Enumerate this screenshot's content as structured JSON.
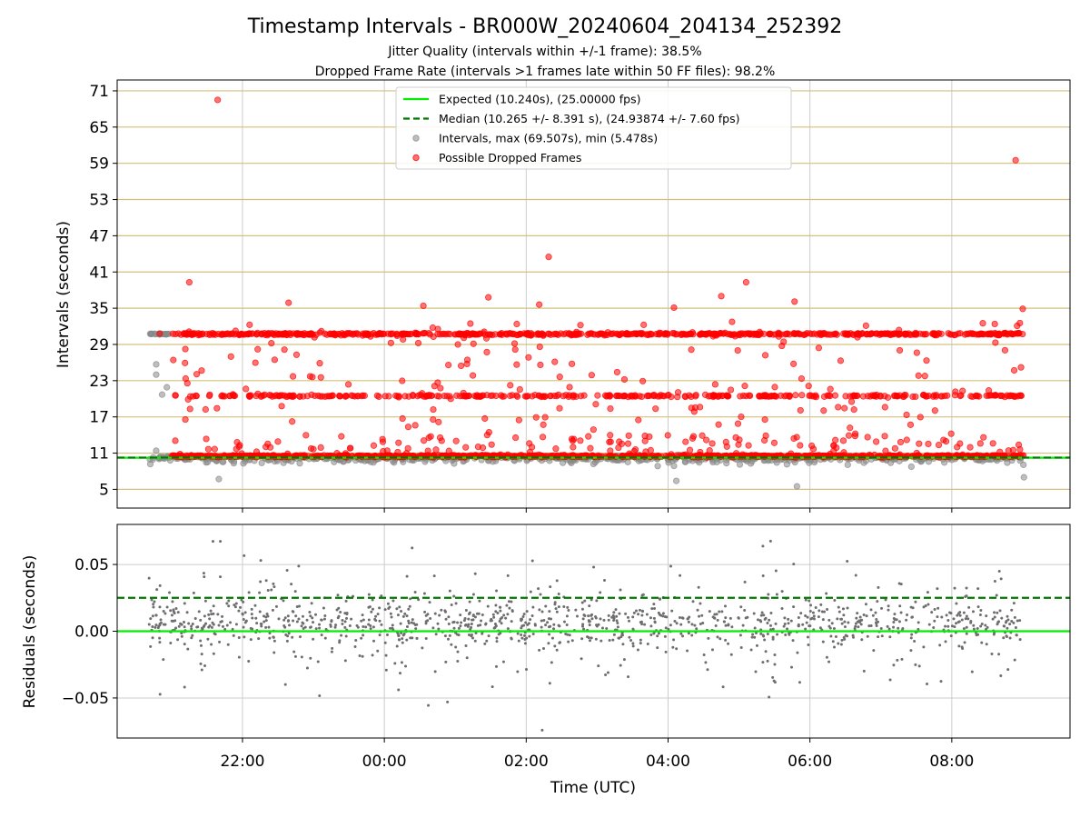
{
  "title": "Timestamp Intervals - BR000W_20240604_204134_252392",
  "subtitle_jitter": "Jitter Quality (intervals within +/-1 frame): 38.5%",
  "subtitle_dropped": "Dropped Frame Rate (intervals >1 frames late within 50 FF files): 98.2%",
  "colors": {
    "expected": "#00ee00",
    "median": "#007700",
    "intervals": "#888888",
    "dropped": "#ff0000",
    "hgrid_top": "#d4c07a",
    "grid": "#cccccc",
    "residual_points": "#6e6e6e"
  },
  "chart_data": [
    {
      "type": "scatter",
      "ylabel": "Intervals (seconds)",
      "xlabel": "",
      "x_range": [
        "20:14",
        "09:40"
      ],
      "ylim": [
        1.9,
        72.8
      ],
      "yticks": [
        5,
        11,
        17,
        23,
        29,
        35,
        41,
        47,
        53,
        59,
        65,
        71
      ],
      "grid": true,
      "legend_position": "upper center",
      "legend": [
        {
          "label": "Expected (10.240s), (25.00000 fps)",
          "style": "solid-line",
          "color": "#00ee00"
        },
        {
          "label": "Median (10.265 +/- 8.391 s), (24.93874 +/- 7.60 fps)",
          "style": "dashed-line",
          "color": "#007700"
        },
        {
          "label": "Intervals, max (69.507s), min (5.478s)",
          "style": "marker",
          "color": "#888888"
        },
        {
          "label": "Possible Dropped Frames",
          "style": "marker",
          "color": "#ff0000"
        }
      ],
      "expected_interval": 10.24,
      "median_interval": 10.265,
      "time_start": "20:41",
      "time_end": "09:01",
      "clusters": [
        {
          "name": "Intervals",
          "center": 10.24,
          "from": "20:41",
          "to": "09:01"
        },
        {
          "name": "Intervals",
          "center": 30.72,
          "from": "20:41",
          "to": "21:00"
        },
        {
          "name": "Possible Dropped Frames",
          "center": 10.5,
          "from": "21:00",
          "to": "09:01"
        },
        {
          "name": "Possible Dropped Frames",
          "center": 20.48,
          "from": "21:00",
          "to": "09:01"
        },
        {
          "name": "Possible Dropped Frames",
          "center": 30.72,
          "from": "21:00",
          "to": "09:01"
        }
      ],
      "outliers": [
        {
          "series": "Possible Dropped Frames",
          "x": "21:39",
          "y": 69.5
        },
        {
          "series": "Possible Dropped Frames",
          "x": "08:54",
          "y": 59.5
        },
        {
          "series": "Possible Dropped Frames",
          "x": "02:19",
          "y": 43.5
        },
        {
          "series": "Possible Dropped Frames",
          "x": "21:15",
          "y": 39.3
        },
        {
          "series": "Possible Dropped Frames",
          "x": "05:06",
          "y": 39.3
        },
        {
          "series": "Possible Dropped Frames",
          "x": "04:45",
          "y": 37.0
        },
        {
          "series": "Possible Dropped Frames",
          "x": "01:28",
          "y": 36.8
        },
        {
          "series": "Possible Dropped Frames",
          "x": "05:47",
          "y": 36.1
        },
        {
          "series": "Possible Dropped Frames",
          "x": "22:39",
          "y": 35.9
        },
        {
          "series": "Possible Dropped Frames",
          "x": "02:11",
          "y": 35.6
        },
        {
          "series": "Possible Dropped Frames",
          "x": "00:33",
          "y": 35.4
        },
        {
          "series": "Possible Dropped Frames",
          "x": "04:05",
          "y": 35.1
        },
        {
          "series": "Possible Dropped Frames",
          "x": "09:00",
          "y": 34.9
        },
        {
          "series": "Possible Dropped Frames",
          "x": "20:50",
          "y": 30.8
        },
        {
          "series": "Intervals",
          "x": "20:47",
          "y": 25.7
        },
        {
          "series": "Intervals",
          "x": "20:47",
          "y": 24.0
        },
        {
          "series": "Intervals",
          "x": "20:52",
          "y": 20.7
        },
        {
          "series": "Intervals",
          "x": "20:56",
          "y": 21.9
        },
        {
          "series": "Intervals",
          "x": "20:47",
          "y": 11.4
        },
        {
          "series": "Intervals",
          "x": "05:49",
          "y": 5.5
        },
        {
          "series": "Intervals",
          "x": "04:07",
          "y": 6.4
        },
        {
          "series": "Intervals",
          "x": "21:40",
          "y": 6.7
        },
        {
          "series": "Intervals",
          "x": "09:01",
          "y": 7.0
        }
      ]
    },
    {
      "type": "scatter",
      "ylabel": "Residuals (seconds)",
      "xlabel": "Time (UTC)",
      "x_range": [
        "20:14",
        "09:40"
      ],
      "ylim": [
        -0.08,
        0.08
      ],
      "yticks": [
        -0.05,
        0.0,
        0.05
      ],
      "ytick_labels": [
        "−0.05",
        "0.00",
        "0.05"
      ],
      "xticks": [
        "22:00",
        "00:00",
        "02:00",
        "04:00",
        "06:00",
        "08:00"
      ],
      "grid": true,
      "expected_line": 0.0,
      "median_line": 0.025,
      "residual_from": "20:41",
      "residual_to": "09:01"
    }
  ]
}
